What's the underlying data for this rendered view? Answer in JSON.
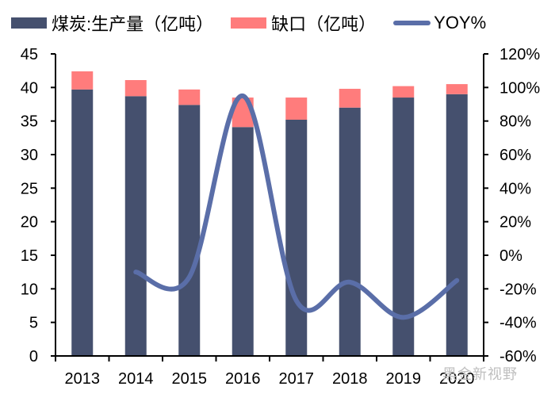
{
  "legend": {
    "production_label": "煤炭:生产量（亿吨）",
    "gap_label": "缺口（亿吨）",
    "yoy_label": "YOY%"
  },
  "colors": {
    "production": "#45506e",
    "gap": "#ff7c7c",
    "yoy": "#5a6ea8",
    "axis": "#000000"
  },
  "watermark": "黑金新视野",
  "chart_data": {
    "type": "bar",
    "title": "",
    "xlabel": "",
    "ylabel": "",
    "y2label": "",
    "categories": [
      "2013",
      "2014",
      "2015",
      "2016",
      "2017",
      "2018",
      "2019",
      "2020"
    ],
    "series": [
      {
        "name": "煤炭:生产量（亿吨）",
        "type": "bar",
        "stack": "total",
        "axis": "left",
        "values": [
          39.7,
          38.7,
          37.4,
          34.1,
          35.2,
          37.0,
          38.5,
          39.0
        ]
      },
      {
        "name": "缺口（亿吨）",
        "type": "bar",
        "stack": "total",
        "axis": "left",
        "values": [
          2.7,
          2.4,
          2.3,
          4.4,
          3.3,
          2.8,
          1.7,
          1.5
        ]
      },
      {
        "name": "YOY%",
        "type": "line",
        "axis": "right",
        "smooth": true,
        "values": [
          null,
          -10,
          -13,
          95,
          -27,
          -16,
          -37,
          -15
        ]
      }
    ],
    "ylim": [
      0,
      45
    ],
    "y_ticks": [
      "0",
      "5",
      "10",
      "15",
      "20",
      "25",
      "30",
      "35",
      "40",
      "45"
    ],
    "y2lim": [
      -60,
      120
    ],
    "y2_ticks": [
      "-60%",
      "-40%",
      "-20%",
      "0%",
      "20%",
      "40%",
      "60%",
      "80%",
      "100%",
      "120%"
    ],
    "grid": false,
    "legend_position": "top"
  }
}
